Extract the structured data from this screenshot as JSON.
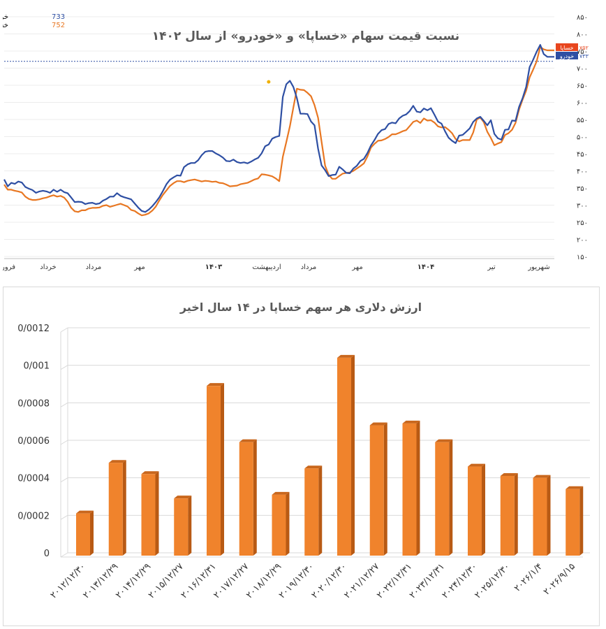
{
  "chart_data": [
    {
      "type": "line",
      "title": "نسبت قیمت سهام «خساپا» و «خودرو» از سال ۱۴۰۲",
      "legend": [
        {
          "name": "خودرو بورس",
          "value": "733",
          "color": "#2e4fa3"
        },
        {
          "name": "خساپا بورس",
          "value": "752",
          "color": "#e87722"
        }
      ],
      "legend_position": "top-left",
      "y_ticks": [
        "۸۵۰",
        "۸۰۰",
        "۷۵۰",
        "۷۰۰",
        "۶۵۰",
        "۶۰۰",
        "۵۵۰",
        "۵۰۰",
        "۴۵۰",
        "۴۰۰",
        "۳۵۰",
        "۳۰۰",
        "۲۵۰",
        "۲۰۰",
        "۱۵۰"
      ],
      "ylim": [
        150,
        850
      ],
      "y_axis_side": "right",
      "x_tick_labels": [
        "فرور",
        "خرداد",
        "مرداد",
        "مهر",
        "۱۴۰۳",
        "اردیبهشت",
        "مرداد",
        "مهر",
        "۱۴۰۴",
        "تیر",
        "شهریور"
      ],
      "reference_line": 720,
      "end_labels": [
        {
          "series": "خساپا",
          "value": "۷۵۲",
          "color": "#e8461e"
        },
        {
          "series": "خودرو",
          "value": "۷۳۳",
          "color": "#2e4fa3"
        }
      ],
      "marker_value": 660,
      "x": [
        0,
        5,
        10,
        15,
        20,
        25,
        30,
        35,
        40,
        45,
        50,
        55,
        60,
        65,
        70,
        75,
        80,
        85,
        90,
        95,
        100,
        105,
        110,
        115,
        120,
        125,
        130,
        135,
        140,
        145,
        150,
        155,
        160,
        165,
        170,
        175,
        180,
        185,
        190,
        195,
        200,
        205,
        210,
        215,
        220,
        225,
        230,
        235,
        240,
        245,
        250,
        255,
        260,
        265,
        270,
        275,
        280,
        285,
        290,
        295,
        300,
        305,
        310,
        315,
        320,
        325,
        330,
        335,
        340,
        345,
        350,
        355,
        360,
        365,
        370,
        375,
        380,
        385,
        390,
        395,
        400,
        405,
        410,
        415,
        420,
        425,
        430,
        435,
        440,
        445,
        450,
        455,
        460,
        465,
        470,
        475,
        480,
        485,
        490,
        495,
        500,
        505,
        510,
        515,
        520,
        525,
        530,
        535,
        540,
        545,
        550,
        555,
        560,
        565,
        570,
        575,
        580,
        585,
        590,
        595,
        600,
        605,
        610,
        615,
        620,
        625,
        630,
        635,
        640,
        645,
        650,
        655,
        660,
        665,
        670,
        675,
        680,
        685,
        690,
        695,
        700,
        705,
        710,
        715,
        720,
        725,
        730,
        735,
        740,
        745,
        750,
        755,
        760,
        765,
        770,
        775,
        780
      ],
      "series": [
        {
          "name": "خودرو بورس",
          "color": "#2e4fa3",
          "values": [
            375,
            355,
            365,
            362,
            369,
            366,
            353,
            348,
            344,
            336,
            340,
            342,
            340,
            336,
            345,
            339,
            345,
            338,
            335,
            322,
            309,
            310,
            309,
            303,
            306,
            307,
            303,
            305,
            313,
            318,
            325,
            325,
            335,
            327,
            323,
            320,
            317,
            305,
            293,
            283,
            280,
            287,
            297,
            309,
            323,
            341,
            361,
            374,
            381,
            387,
            386,
            411,
            419,
            423,
            423,
            431,
            446,
            456,
            458,
            458,
            451,
            446,
            439,
            429,
            428,
            433,
            426,
            423,
            425,
            422,
            427,
            433,
            438,
            451,
            472,
            477,
            494,
            499,
            502,
            616,
            653,
            663,
            645,
            612,
            567,
            567,
            566,
            544,
            533,
            465,
            416,
            402,
            385,
            388,
            389,
            412,
            404,
            394,
            393,
            407,
            415,
            429,
            435,
            452,
            474,
            490,
            508,
            519,
            522,
            537,
            541,
            539,
            553,
            561,
            565,
            575,
            590,
            573,
            571,
            582,
            577,
            583,
            564,
            544,
            538,
            516,
            497,
            488,
            481,
            503,
            505,
            514,
            524,
            543,
            553,
            558,
            546,
            533,
            548,
            508,
            495,
            491,
            520,
            521,
            547,
            546,
            587,
            612,
            645,
            703,
            725,
            748,
            768,
            741,
            733,
            733,
            733
          ]
        },
        {
          "name": "خساپا بورس",
          "color": "#e87722",
          "values": [
            360,
            345,
            345,
            342,
            340,
            337,
            325,
            318,
            315,
            315,
            317,
            320,
            322,
            326,
            329,
            325,
            327,
            322,
            310,
            292,
            282,
            280,
            285,
            285,
            290,
            292,
            292,
            293,
            298,
            300,
            295,
            298,
            301,
            304,
            300,
            296,
            286,
            283,
            276,
            270,
            272,
            276,
            284,
            296,
            314,
            330,
            343,
            356,
            364,
            370,
            370,
            367,
            371,
            373,
            375,
            372,
            369,
            371,
            370,
            368,
            369,
            365,
            364,
            360,
            355,
            356,
            357,
            361,
            363,
            365,
            370,
            375,
            378,
            390,
            389,
            387,
            384,
            378,
            370,
            441,
            484,
            530,
            585,
            640,
            637,
            636,
            628,
            618,
            592,
            555,
            485,
            415,
            389,
            377,
            377,
            385,
            392,
            394,
            395,
            400,
            407,
            414,
            422,
            442,
            468,
            479,
            488,
            489,
            493,
            499,
            507,
            507,
            511,
            516,
            519,
            531,
            543,
            547,
            540,
            553,
            547,
            548,
            541,
            530,
            527,
            528,
            520,
            510,
            493,
            486,
            490,
            490,
            490,
            512,
            550,
            556,
            542,
            514,
            496,
            475,
            480,
            484,
            505,
            510,
            520,
            540,
            579,
            608,
            634,
            673,
            696,
            720,
            762,
            755,
            752,
            752,
            752
          ]
        }
      ]
    },
    {
      "type": "bar",
      "title": "ارزش دلاری هر سهم خساپا در ۱۴ سال اخیر",
      "y_ticks": [
        "0",
        "0/0002",
        "0/0004",
        "0/0006",
        "0/0008",
        "0/001",
        "0/0012"
      ],
      "ylim": [
        0,
        0.0012
      ],
      "categories": [
        "2012/12/30",
        "2013/12/29",
        "2014/12/29",
        "2015/12/27",
        "2016/12/31",
        "2017/12/27",
        "2018/12/29",
        "2019/12/30",
        "2020/12/30",
        "2021/12/27",
        "2022/12/31",
        "2023/12/31",
        "2024/12/30",
        "2025/12/30",
        "2026/1/4",
        "2026/9/15"
      ],
      "category_labels": [
        "۲۰۱۲/۱۲/۳۰",
        "۲۰۱۳/۱۲/۲۹",
        "۲۰۱۴/۱۲/۲۹",
        "۲۰۱۵/۱۲/۲۷",
        "۲۰۱۶/۱۲/۳۱",
        "۲۰۱۷/۱۲/۲۷",
        "۲۰۱۸/۱۲/۲۹",
        "۲۰۱۹/۱۲/۳۰",
        "۲۰۲۰/۱۲/۳۰",
        "۲۰۲۱/۱۲/۲۷",
        "۲۰۲۲/۱۲/۳۱",
        "۲۰۲۳/۱۲/۳۱",
        "۲۰۲۴/۱۲/۳۰",
        "۲۰۲۵/۱۲/۳۰",
        "۲۰۲۶/۱/۴",
        "۲۰۲۶/۹/۱۵"
      ],
      "values": [
        0.00021,
        0.00048,
        0.00042,
        0.00029,
        0.00089,
        0.00059,
        0.00031,
        0.00045,
        0.00104,
        0.00068,
        0.00069,
        0.00059,
        0.00046,
        0.00041,
        0.0004,
        0.00034
      ],
      "bar_color": "#f0832c"
    }
  ]
}
